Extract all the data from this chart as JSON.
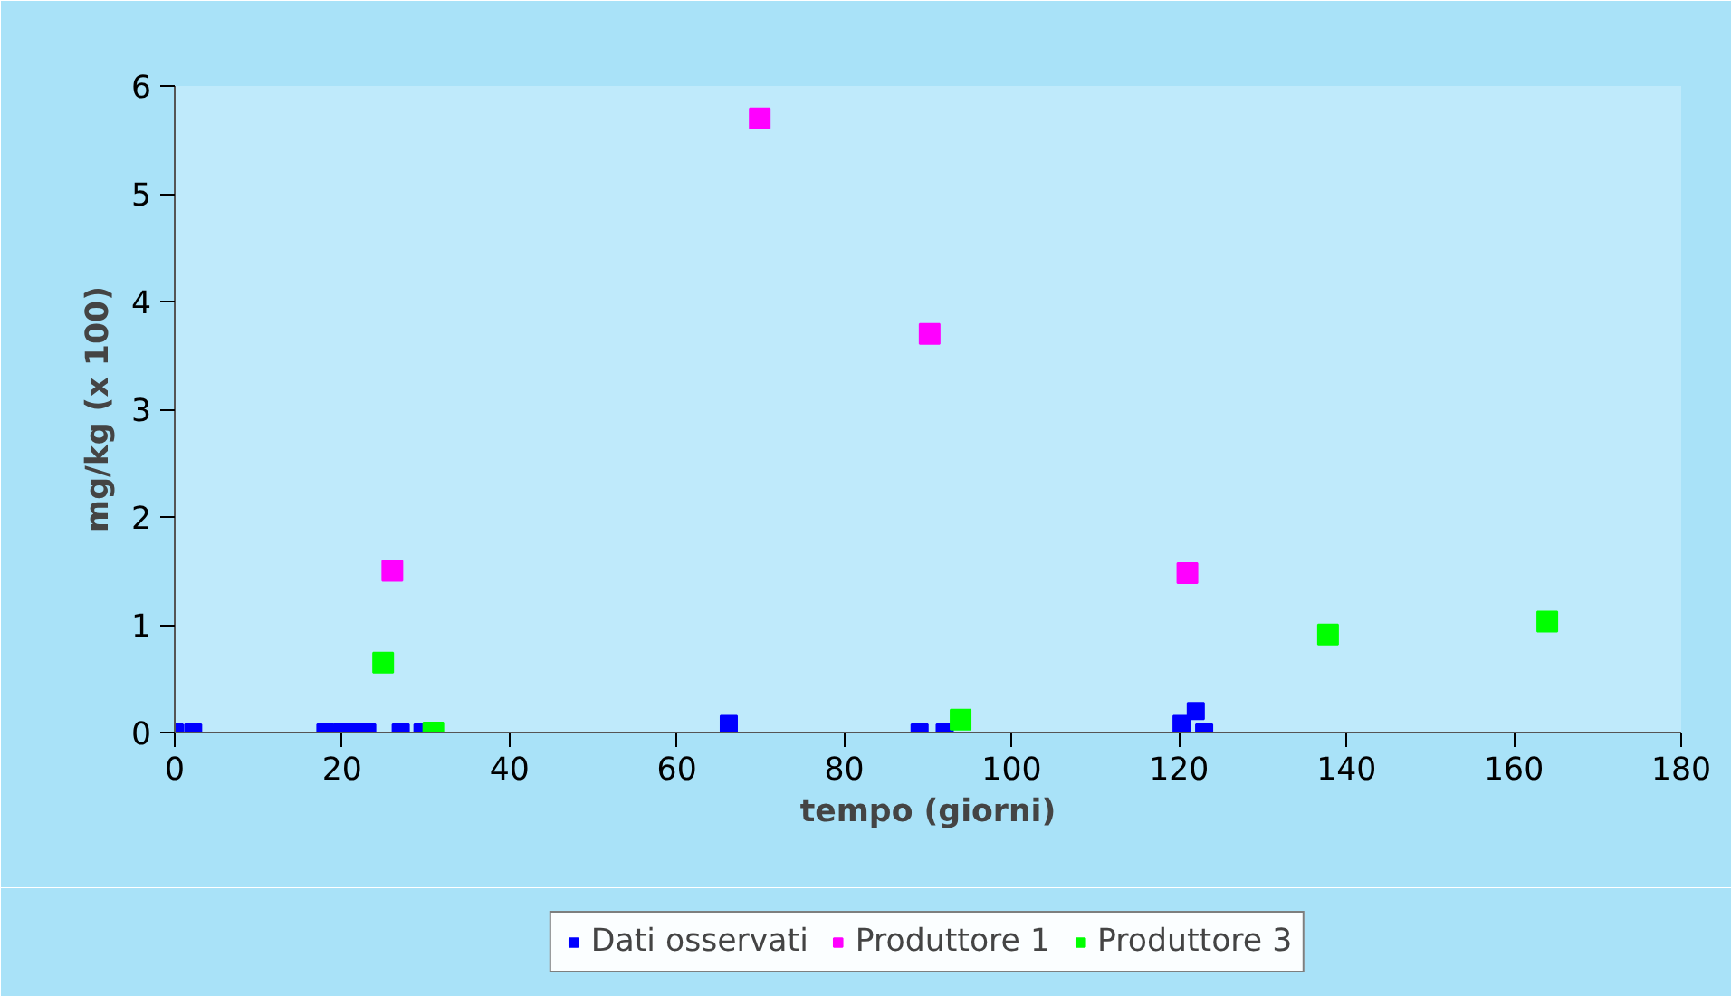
{
  "chart_data": {
    "type": "scatter",
    "xlabel": "tempo (giorni)",
    "ylabel": "mg/kg (x 100)",
    "xlim": [
      0,
      180
    ],
    "xticks": [
      0,
      20,
      40,
      60,
      80,
      100,
      120,
      140,
      160,
      180
    ],
    "ylim": [
      0,
      6
    ],
    "yticks": [
      0,
      1,
      2,
      3,
      4,
      5,
      6
    ],
    "marker": "square",
    "grid": false,
    "legend": "bottom",
    "series": [
      {
        "name": "Dati osservati",
        "color": "#0000ff",
        "x": [
          0,
          2.2,
          18,
          20,
          21,
          23,
          27,
          29.6,
          66.2,
          89,
          92,
          120.3,
          122,
          123
        ],
        "values": [
          0,
          0,
          0,
          0,
          0,
          0,
          0,
          0,
          0.08,
          0,
          0,
          0.08,
          0.2,
          0
        ]
      },
      {
        "name": "Produttore 1",
        "color": "#ff00ff",
        "x": [
          26,
          69.9,
          90.2,
          121
        ],
        "values": [
          1.5,
          5.7,
          3.7,
          1.48
        ]
      },
      {
        "name": "Produttore 3",
        "color": "#00ff00",
        "x": [
          24.9,
          30.9,
          93.9,
          137.8,
          164
        ],
        "values": [
          0.65,
          0,
          0.12,
          0.91,
          1.03
        ]
      }
    ]
  }
}
